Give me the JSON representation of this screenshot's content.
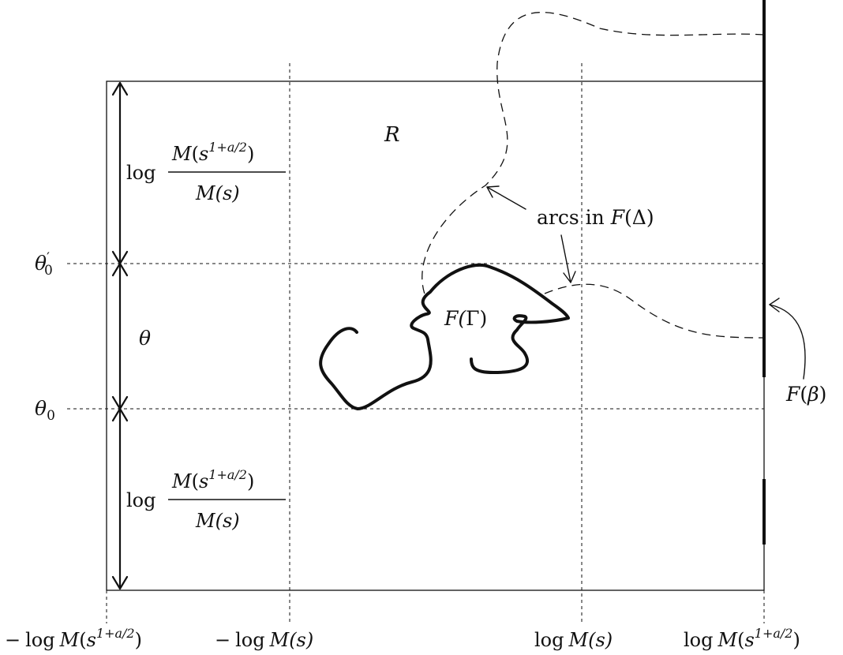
{
  "labels": {
    "region": "R",
    "curve_gamma_pre": "F(",
    "curve_gamma_sym": "Γ",
    "curve_gamma_post": ")",
    "arcs_pre": "arcs in ",
    "arcs_fn": "F",
    "arcs_sym": "(Δ)",
    "beta_fn": "F",
    "beta_open": "(",
    "beta_sym": "β",
    "beta_close": ")",
    "theta": "θ",
    "theta0_sym": "θ",
    "theta0_sub": "0",
    "theta0p_sym": "θ",
    "theta0p_prime": "′",
    "theta0p_sub": "0"
  },
  "height_label": {
    "log": "log",
    "numer_M": "M",
    "numer_open": "(",
    "numer_s": "s",
    "numer_exp": "1+a/2",
    "numer_close": ")",
    "denom": "M(s)"
  },
  "x_ticks": {
    "t1_minus": "−",
    "t1_log": "log",
    "t1_M": "M",
    "t1_open": "(",
    "t1_s": "s",
    "t1_exp": "1+a/2",
    "t1_close": ")",
    "t2_minus": "−",
    "t2_log": "log",
    "t2_M": "M",
    "t2_arg": "(s)",
    "t3_log": "log",
    "t3_M": "M",
    "t3_arg": "(s)",
    "t4_log": "log",
    "t4_M": "M",
    "t4_open": "(",
    "t4_s": "s",
    "t4_exp": "1+a/2",
    "t4_close": ")"
  }
}
